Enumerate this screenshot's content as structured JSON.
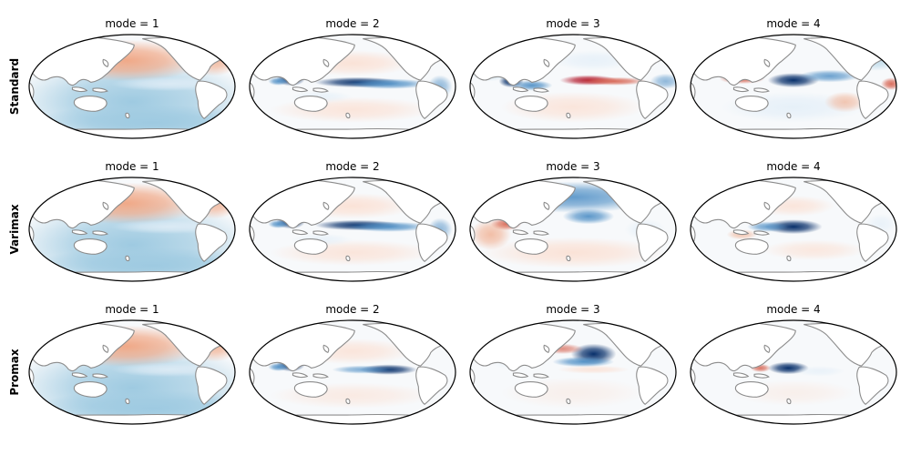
{
  "figure": {
    "rows": [
      {
        "label": "Standard",
        "panels": [
          {
            "title": "mode = 1",
            "pattern": "mode1"
          },
          {
            "title": "mode = 2",
            "pattern": "mode2"
          },
          {
            "title": "mode = 3",
            "pattern": "mode3-standard"
          },
          {
            "title": "mode = 4",
            "pattern": "mode4-standard"
          }
        ]
      },
      {
        "label": "Varimax",
        "panels": [
          {
            "title": "mode = 1",
            "pattern": "mode1"
          },
          {
            "title": "mode = 2",
            "pattern": "mode2"
          },
          {
            "title": "mode = 3",
            "pattern": "mode3-varimax"
          },
          {
            "title": "mode = 4",
            "pattern": "mode4-varimax"
          }
        ]
      },
      {
        "label": "Promax",
        "panels": [
          {
            "title": "mode = 1",
            "pattern": "mode1"
          },
          {
            "title": "mode = 2",
            "pattern": "mode2-promax"
          },
          {
            "title": "mode = 3",
            "pattern": "mode3-promax"
          },
          {
            "title": "mode = 4",
            "pattern": "mode4-promax"
          }
        ]
      }
    ],
    "colors": {
      "land": "#ffffff",
      "coastline": "#8c8c8c",
      "border": "#000000",
      "deep_blue": "#08306b",
      "mid_blue": "#4a8cc4",
      "light_blue": "#9ecae1",
      "pale_blue": "#e4eff8",
      "pale_red": "#fbe0d3",
      "light_red": "#f0a582",
      "mid_red": "#d6604d",
      "deep_red": "#b2182b"
    },
    "colormap": "RdBu_r",
    "projection": "Robinson, Pacific-centered"
  }
}
